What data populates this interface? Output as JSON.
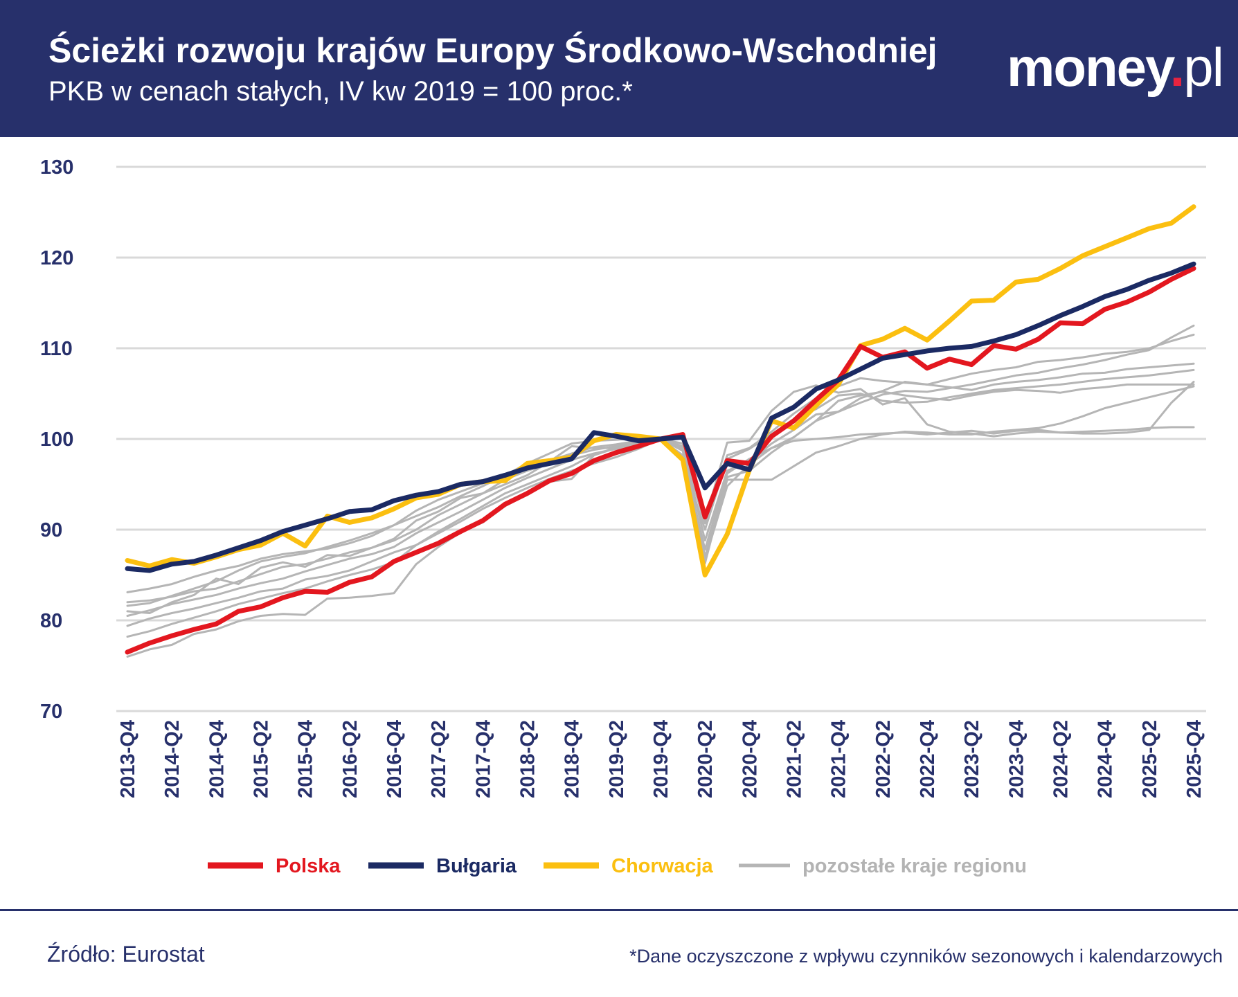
{
  "header": {
    "title": "Ścieżki rozwoju krajów Europy Środkowo-Wschodniej",
    "subtitle": "PKB w cenach stałych, IV kw 2019 = 100 proc.*",
    "logo_main": "money",
    "logo_dot": ".",
    "logo_suffix": "pl"
  },
  "footer": {
    "source": "Źródło: Eurostat",
    "note": "*Dane oczyszczone z wpływu czynników sezonowych i kalendarzowych"
  },
  "colors": {
    "header_bg": "#27306b",
    "polska": "#e3171f",
    "bulgaria": "#1b2a63",
    "chorwacja": "#fbbf10",
    "others": "#b5b5b5",
    "grid": "#d9d9d9",
    "axis_text": "#27306b"
  },
  "chart_data": {
    "type": "line",
    "title": "Ścieżki rozwoju krajów Europy Środkowo-Wschodniej",
    "ylabel": "PKB w cenach stałych, IV kw 2019 = 100 proc.",
    "ylim": [
      70,
      130
    ],
    "yticks": [
      70,
      80,
      90,
      100,
      110,
      120,
      130
    ],
    "grid": true,
    "x": [
      "2013-Q4",
      "2014-Q1",
      "2014-Q2",
      "2014-Q3",
      "2014-Q4",
      "2015-Q1",
      "2015-Q2",
      "2015-Q3",
      "2015-Q4",
      "2016-Q1",
      "2016-Q2",
      "2016-Q3",
      "2016-Q4",
      "2017-Q1",
      "2017-Q2",
      "2017-Q3",
      "2017-Q4",
      "2018-Q1",
      "2018-Q2",
      "2018-Q3",
      "2018-Q4",
      "2019-Q1",
      "2019-Q2",
      "2019-Q3",
      "2019-Q4",
      "2020-Q1",
      "2020-Q2",
      "2020-Q3",
      "2020-Q4",
      "2021-Q1",
      "2021-Q2",
      "2021-Q3",
      "2021-Q4",
      "2022-Q1",
      "2022-Q2",
      "2022-Q3",
      "2022-Q4",
      "2023-Q1",
      "2023-Q2",
      "2023-Q3",
      "2023-Q4",
      "2024-Q1",
      "2024-Q2",
      "2024-Q3",
      "2024-Q4",
      "2025-Q1",
      "2025-Q2",
      "2025-Q3",
      "2025-Q4"
    ],
    "xtick_labels": [
      "2013-Q4",
      "2014-Q2",
      "2014-Q4",
      "2015-Q2",
      "2015-Q4",
      "2016-Q2",
      "2016-Q4",
      "2017-Q2",
      "2017-Q4",
      "2018-Q2",
      "2018-Q4",
      "2019-Q2",
      "2019-Q4",
      "2020-Q2",
      "2020-Q4",
      "2021-Q2",
      "2021-Q4",
      "2022-Q2",
      "2022-Q4",
      "2023-Q2",
      "2023-Q4",
      "2024-Q2",
      "2024-Q4",
      "2025-Q2",
      "2025-Q4"
    ],
    "legend": [
      "Polska",
      "Bułgaria",
      "Chorwacja",
      "pozostałe kraje regionu"
    ],
    "legend_position": "bottom",
    "series": [
      {
        "name": "Polska",
        "key": "polska",
        "values": [
          76.5,
          77.5,
          78.3,
          79.0,
          79.6,
          81.0,
          81.5,
          82.5,
          83.2,
          83.1,
          84.2,
          84.8,
          86.5,
          87.5,
          88.5,
          89.8,
          91.0,
          92.8,
          94.0,
          95.4,
          96.2,
          97.6,
          98.5,
          99.2,
          100.0,
          100.5,
          91.4,
          97.6,
          97.3,
          100.3,
          102.0,
          104.3,
          106.5,
          110.2,
          109.0,
          109.6,
          107.8,
          108.8,
          108.2,
          110.3,
          109.9,
          111.0,
          112.8,
          112.7,
          114.3,
          115.1,
          116.2,
          117.6,
          118.8
        ]
      },
      {
        "name": "Bułgaria",
        "key": "bulgaria",
        "values": [
          85.7,
          85.5,
          86.2,
          86.5,
          87.2,
          88.0,
          88.8,
          89.8,
          90.5,
          91.2,
          92.0,
          92.2,
          93.2,
          93.8,
          94.2,
          95.0,
          95.3,
          96.0,
          96.8,
          97.3,
          97.8,
          100.7,
          100.3,
          99.8,
          100.0,
          100.2,
          94.6,
          97.3,
          96.6,
          102.3,
          103.5,
          105.5,
          106.5,
          107.7,
          108.9,
          109.3,
          109.7,
          110.0,
          110.2,
          110.8,
          111.5,
          112.5,
          113.6,
          114.6,
          115.7,
          116.5,
          117.5,
          118.3,
          119.3
        ]
      },
      {
        "name": "Chorwacja",
        "key": "chorwacja",
        "values": [
          86.6,
          86.0,
          86.7,
          86.3,
          87.0,
          87.8,
          88.3,
          89.6,
          88.2,
          91.5,
          90.8,
          91.3,
          92.3,
          93.5,
          93.9,
          95.0,
          95.3,
          95.4,
          97.3,
          97.6,
          98.0,
          99.8,
          100.5,
          100.3,
          100.0,
          97.7,
          85.0,
          89.5,
          96.6,
          102.0,
          101.2,
          103.7,
          106.0,
          110.3,
          111.0,
          112.2,
          110.9,
          113.0,
          115.2,
          115.3,
          117.3,
          117.6,
          118.8,
          120.2,
          121.2,
          122.2,
          123.2,
          123.8,
          125.6
        ]
      },
      {
        "name": "pozostałe kraje regionu",
        "key": "others",
        "values": [
          82.0,
          82.2,
          82.6,
          83.2,
          83.5,
          84.3,
          85.1,
          85.9,
          86.2,
          86.8,
          87.5,
          88.0,
          88.8,
          90.0,
          91.6,
          92.8,
          94.0,
          95.5,
          96.5,
          97.3,
          98.2,
          98.8,
          99.2,
          99.6,
          100.0,
          99.2,
          88.8,
          96.5,
          97.5,
          99.5,
          101.0,
          102.7,
          103.0,
          104.5,
          105.3,
          106.3,
          106.0,
          106.6,
          107.2,
          107.6,
          107.9,
          108.5,
          108.7,
          109.0,
          109.4,
          109.6,
          110.0,
          110.8,
          111.5
        ]
      },
      {
        "name": "pozostałe kraje regionu",
        "key": "others",
        "values": [
          80.5,
          81.1,
          81.8,
          82.3,
          82.8,
          83.5,
          84.1,
          84.6,
          85.4,
          86.1,
          86.8,
          87.3,
          88.1,
          89.6,
          90.8,
          92.0,
          93.3,
          94.6,
          95.7,
          96.7,
          97.7,
          98.4,
          98.9,
          99.4,
          100.0,
          98.0,
          86.3,
          95.8,
          96.5,
          98.5,
          100.2,
          102.0,
          103.0,
          104.0,
          104.9,
          105.3,
          105.2,
          105.6,
          106.0,
          106.5,
          107.0,
          107.3,
          107.8,
          108.2,
          108.7,
          109.3,
          109.8,
          111.2,
          112.5
        ]
      },
      {
        "name": "pozostałe kraje regionu",
        "key": "others",
        "values": [
          83.1,
          83.5,
          84.0,
          84.8,
          85.5,
          86.0,
          86.8,
          87.3,
          87.6,
          87.9,
          88.5,
          89.3,
          90.5,
          91.5,
          92.5,
          93.7,
          94.8,
          96.0,
          97.3,
          98.4,
          99.5,
          99.8,
          99.9,
          100.1,
          100.0,
          98.8,
          90.7,
          98.2,
          99.0,
          100.8,
          102.8,
          104.5,
          105.8,
          106.7,
          106.4,
          106.2,
          106.0,
          105.7,
          105.4,
          106.0,
          106.3,
          106.5,
          106.8,
          107.2,
          107.3,
          107.7,
          107.9,
          108.1,
          108.3
        ]
      },
      {
        "name": "pozostałe kraje regionu",
        "key": "others",
        "values": [
          81.6,
          81.9,
          82.7,
          83.5,
          84.3,
          85.5,
          86.5,
          87.0,
          87.4,
          88.1,
          88.8,
          89.6,
          90.5,
          92.1,
          93.3,
          94.2,
          95.1,
          95.9,
          96.8,
          97.6,
          98.4,
          99.1,
          99.4,
          99.8,
          100.0,
          97.6,
          90.0,
          97.8,
          98.9,
          100.5,
          102.2,
          103.3,
          104.8,
          105.0,
          104.2,
          104.0,
          104.1,
          104.6,
          105.0,
          105.4,
          105.6,
          105.8,
          106.0,
          106.3,
          106.6,
          106.8,
          107.0,
          107.3,
          107.6
        ]
      },
      {
        "name": "pozostałe kraje regionu",
        "key": "others",
        "values": [
          79.4,
          80.2,
          80.8,
          81.3,
          81.9,
          82.5,
          83.2,
          83.5,
          84.5,
          84.9,
          85.5,
          86.5,
          87.5,
          88.3,
          89.6,
          90.9,
          92.3,
          93.5,
          94.6,
          95.6,
          96.5,
          97.3,
          98.0,
          98.9,
          100.0,
          98.7,
          87.0,
          95.5,
          95.5,
          95.5,
          97.0,
          98.5,
          99.2,
          100.0,
          100.5,
          100.8,
          100.7,
          100.5,
          100.5,
          100.8,
          101.0,
          101.2,
          101.7,
          102.5,
          103.4,
          104.0,
          104.6,
          105.2,
          105.8
        ]
      },
      {
        "name": "pozostałe kraje regionu",
        "key": "others",
        "values": [
          78.2,
          78.8,
          79.6,
          80.3,
          81.0,
          81.8,
          82.4,
          83.0,
          83.5,
          84.3,
          85.0,
          85.6,
          86.4,
          88.3,
          89.8,
          91.2,
          92.6,
          94.0,
          95.0,
          96.0,
          97.0,
          98.3,
          99.0,
          99.5,
          100.0,
          98.2,
          87.8,
          96.2,
          97.8,
          99.0,
          99.8,
          100.0,
          100.2,
          100.5,
          100.6,
          100.7,
          100.5,
          100.7,
          100.9,
          100.6,
          100.9,
          101.0,
          100.7,
          100.8,
          100.9,
          101.0,
          101.2,
          101.3,
          101.3
        ]
      },
      {
        "name": "pozostałe kraje regionu",
        "key": "others",
        "values": [
          76.0,
          76.8,
          77.3,
          78.5,
          79.0,
          79.9,
          80.5,
          80.7,
          80.6,
          82.4,
          82.5,
          82.7,
          83.0,
          86.2,
          88.1,
          89.7,
          90.8,
          92.6,
          93.9,
          95.3,
          95.6,
          98.2,
          99.0,
          99.5,
          100.0,
          99.5,
          86.7,
          94.8,
          97.2,
          99.0,
          100.2,
          102.0,
          104.2,
          104.8,
          105.2,
          104.8,
          104.5,
          104.3,
          104.8,
          105.2,
          105.4,
          105.3,
          105.1,
          105.5,
          105.7,
          106.0,
          106.0,
          106.0,
          106.0
        ]
      },
      {
        "name": "pozostałe kraje regionu",
        "key": "others",
        "values": [
          81.0,
          80.8,
          82.0,
          82.8,
          84.6,
          84.0,
          85.8,
          86.4,
          85.9,
          87.2,
          87.1,
          88.0,
          89.0,
          91.0,
          92.0,
          93.5,
          94.0,
          95.0,
          96.0,
          97.5,
          99.2,
          99.0,
          99.0,
          99.6,
          100.0,
          99.0,
          91.0,
          99.6,
          99.8,
          103.1,
          105.2,
          105.9,
          105.1,
          105.5,
          103.8,
          104.5,
          101.6,
          100.8,
          100.6,
          100.3,
          100.6,
          100.8,
          100.7,
          100.6,
          100.6,
          100.7,
          101.0,
          104.0,
          106.3
        ]
      }
    ]
  }
}
